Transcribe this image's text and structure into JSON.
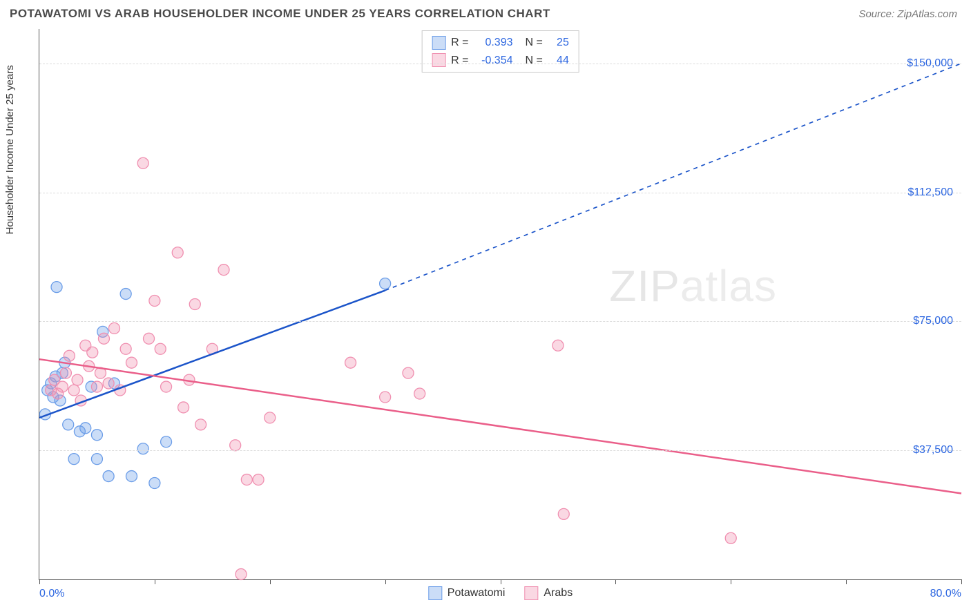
{
  "header": {
    "title": "POTAWATOMI VS ARAB HOUSEHOLDER INCOME UNDER 25 YEARS CORRELATION CHART",
    "source": "Source: ZipAtlas.com"
  },
  "chart": {
    "type": "scatter",
    "ylabel": "Householder Income Under 25 years",
    "xlim": [
      0,
      80
    ],
    "ylim": [
      0,
      160000
    ],
    "xmin_label": "0.0%",
    "xmax_label": "80.0%",
    "y_ticks": [
      37500,
      75000,
      112500,
      150000
    ],
    "y_tick_labels": [
      "$37,500",
      "$75,000",
      "$112,500",
      "$150,000"
    ],
    "x_ticks": [
      0,
      10,
      20,
      30,
      40,
      50,
      60,
      70,
      80
    ],
    "background_color": "#ffffff",
    "grid_color": "#dcdcdc",
    "axis_color": "#555555",
    "axis_label_color": "#2c66e0",
    "marker_radius": 8,
    "marker_fill_opacity": 0.35,
    "marker_stroke_width": 1.3,
    "line_width": 2.5,
    "dash_pattern": "6,6",
    "watermark": {
      "text_a": "ZIP",
      "text_b": "atlas"
    },
    "series": [
      {
        "name": "Potawatomi",
        "color": "#6b9de8",
        "line_color": "#1b54c9",
        "r": "0.393",
        "n": "25",
        "trend_solid": {
          "x1": 0,
          "y1": 47000,
          "x2": 30,
          "y2": 84000
        },
        "trend_dash": {
          "x1": 30,
          "y1": 84000,
          "x2": 80,
          "y2": 150000
        },
        "points": [
          [
            0.5,
            48000
          ],
          [
            0.7,
            55000
          ],
          [
            1.0,
            57000
          ],
          [
            1.2,
            53000
          ],
          [
            1.4,
            59000
          ],
          [
            1.5,
            85000
          ],
          [
            1.8,
            52000
          ],
          [
            2.0,
            60000
          ],
          [
            2.2,
            63000
          ],
          [
            2.5,
            45000
          ],
          [
            3.0,
            35000
          ],
          [
            3.5,
            43000
          ],
          [
            4.0,
            44000
          ],
          [
            4.5,
            56000
          ],
          [
            5.0,
            42000
          ],
          [
            5.5,
            72000
          ],
          [
            6.0,
            30000
          ],
          [
            6.5,
            57000
          ],
          [
            7.5,
            83000
          ],
          [
            8.0,
            30000
          ],
          [
            9.0,
            38000
          ],
          [
            10.0,
            28000
          ],
          [
            11.0,
            40000
          ],
          [
            5.0,
            35000
          ],
          [
            30.0,
            86000
          ]
        ]
      },
      {
        "name": "Arabs",
        "color": "#f08fb0",
        "line_color": "#ea5e89",
        "r": "-0.354",
        "n": "44",
        "trend_solid": {
          "x1": 0,
          "y1": 64000,
          "x2": 80,
          "y2": 25000
        },
        "trend_dash": null,
        "points": [
          [
            1.0,
            55000
          ],
          [
            1.3,
            58000
          ],
          [
            1.6,
            54000
          ],
          [
            2.0,
            56000
          ],
          [
            2.3,
            60000
          ],
          [
            2.6,
            65000
          ],
          [
            3.0,
            55000
          ],
          [
            3.3,
            58000
          ],
          [
            3.6,
            52000
          ],
          [
            4.0,
            68000
          ],
          [
            4.3,
            62000
          ],
          [
            4.6,
            66000
          ],
          [
            5.0,
            56000
          ],
          [
            5.3,
            60000
          ],
          [
            5.6,
            70000
          ],
          [
            6.0,
            57000
          ],
          [
            6.5,
            73000
          ],
          [
            7.0,
            55000
          ],
          [
            7.5,
            67000
          ],
          [
            8.0,
            63000
          ],
          [
            9.0,
            121000
          ],
          [
            9.5,
            70000
          ],
          [
            10.0,
            81000
          ],
          [
            10.5,
            67000
          ],
          [
            11.0,
            56000
          ],
          [
            12.0,
            95000
          ],
          [
            12.5,
            50000
          ],
          [
            13.0,
            58000
          ],
          [
            13.5,
            80000
          ],
          [
            14.0,
            45000
          ],
          [
            15.0,
            67000
          ],
          [
            16.0,
            90000
          ],
          [
            17.0,
            39000
          ],
          [
            18.0,
            29000
          ],
          [
            19.0,
            29000
          ],
          [
            20.0,
            47000
          ],
          [
            17.5,
            1500
          ],
          [
            27.0,
            63000
          ],
          [
            30.0,
            53000
          ],
          [
            32.0,
            60000
          ],
          [
            33.0,
            54000
          ],
          [
            45.0,
            68000
          ],
          [
            45.5,
            19000
          ],
          [
            60.0,
            12000
          ]
        ]
      }
    ],
    "legend": {
      "items": [
        {
          "label": "Potawatomi",
          "color": "#6b9de8"
        },
        {
          "label": "Arabs",
          "color": "#f08fb0"
        }
      ]
    }
  }
}
